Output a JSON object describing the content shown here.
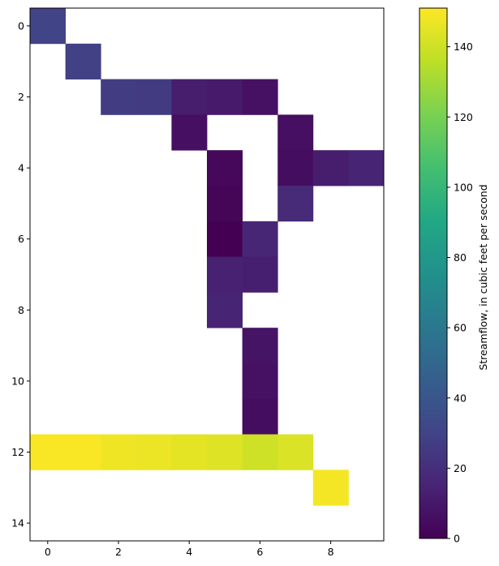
{
  "chart_data": {
    "type": "heatmap",
    "title": "",
    "xlabel": "",
    "ylabel": "",
    "cols": 10,
    "rows": 15,
    "xticks": [
      0,
      2,
      4,
      6,
      8
    ],
    "yticks": [
      0,
      2,
      4,
      6,
      8,
      10,
      12,
      14
    ],
    "colormap": "viridis",
    "colorbar": {
      "label": "Streamflow, in cubic feet per second",
      "min": 0,
      "max": 151,
      "ticks": [
        0,
        20,
        40,
        60,
        80,
        100,
        120,
        140
      ]
    },
    "cells": [
      {
        "row": 0,
        "col": 0,
        "value": 30
      },
      {
        "row": 1,
        "col": 1,
        "value": 29
      },
      {
        "row": 2,
        "col": 2,
        "value": 27
      },
      {
        "row": 2,
        "col": 3,
        "value": 26
      },
      {
        "row": 2,
        "col": 4,
        "value": 12
      },
      {
        "row": 2,
        "col": 5,
        "value": 11
      },
      {
        "row": 2,
        "col": 6,
        "value": 7
      },
      {
        "row": 3,
        "col": 4,
        "value": 6
      },
      {
        "row": 3,
        "col": 7,
        "value": 6
      },
      {
        "row": 4,
        "col": 5,
        "value": 3
      },
      {
        "row": 4,
        "col": 7,
        "value": 5
      },
      {
        "row": 4,
        "col": 8,
        "value": 12
      },
      {
        "row": 4,
        "col": 9,
        "value": 15
      },
      {
        "row": 5,
        "col": 5,
        "value": 2
      },
      {
        "row": 5,
        "col": 7,
        "value": 18
      },
      {
        "row": 6,
        "col": 5,
        "value": 0
      },
      {
        "row": 6,
        "col": 6,
        "value": 16
      },
      {
        "row": 7,
        "col": 5,
        "value": 14
      },
      {
        "row": 7,
        "col": 6,
        "value": 13
      },
      {
        "row": 8,
        "col": 5,
        "value": 15
      },
      {
        "row": 9,
        "col": 6,
        "value": 8
      },
      {
        "row": 10,
        "col": 6,
        "value": 7
      },
      {
        "row": 11,
        "col": 6,
        "value": 5
      },
      {
        "row": 12,
        "col": 0,
        "value": 150
      },
      {
        "row": 12,
        "col": 1,
        "value": 150
      },
      {
        "row": 12,
        "col": 2,
        "value": 148
      },
      {
        "row": 12,
        "col": 3,
        "value": 147
      },
      {
        "row": 12,
        "col": 4,
        "value": 145
      },
      {
        "row": 12,
        "col": 5,
        "value": 144
      },
      {
        "row": 12,
        "col": 6,
        "value": 140
      },
      {
        "row": 12,
        "col": 7,
        "value": 143
      },
      {
        "row": 13,
        "col": 8,
        "value": 149
      }
    ]
  }
}
